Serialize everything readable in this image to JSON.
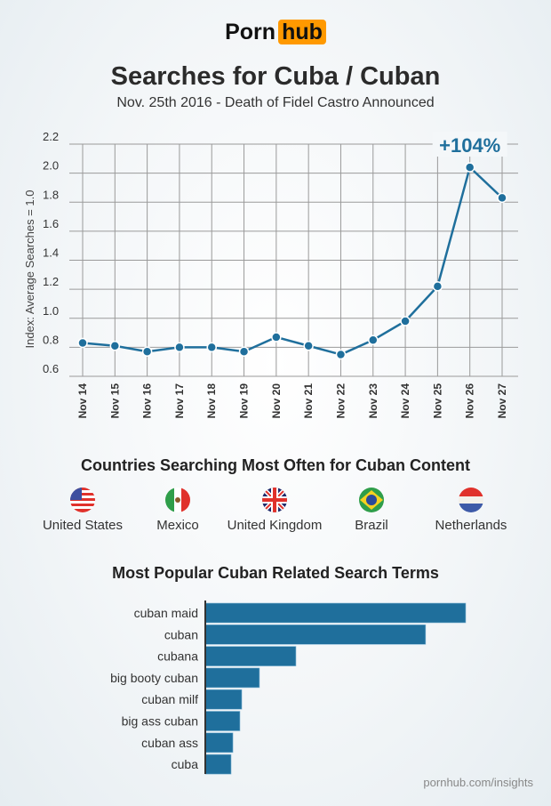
{
  "logo": {
    "part1": "Porn",
    "part2": "hub"
  },
  "title": "Searches for Cuba / Cuban",
  "subtitle": "Nov. 25th 2016 - Death of Fidel Castro Announced",
  "chart_data": [
    {
      "type": "line",
      "ylabel": "Index: Average Searches = 1.0",
      "xlabel": "",
      "categories": [
        "Nov 14",
        "Nov 15",
        "Nov 16",
        "Nov 17",
        "Nov 18",
        "Nov 19",
        "Nov 20",
        "Nov 21",
        "Nov 22",
        "Nov 23",
        "Nov 24",
        "Nov 25",
        "Nov 26",
        "Nov 27"
      ],
      "values": [
        0.83,
        0.81,
        0.77,
        0.8,
        0.8,
        0.77,
        0.87,
        0.81,
        0.75,
        0.85,
        0.98,
        1.22,
        2.04,
        1.83
      ],
      "ylim": [
        0.6,
        2.2
      ],
      "yticks": [
        "0.6",
        "0.8",
        "1.0",
        "1.2",
        "1.4",
        "1.6",
        "1.8",
        "2.0",
        "2.2"
      ],
      "grid": true,
      "annotation": {
        "text": "+104%",
        "category": "Nov 26"
      },
      "color": "#1f6f9c"
    },
    {
      "type": "bar",
      "orientation": "horizontal",
      "title": "Most Popular Cuban Related Search Terms",
      "categories": [
        "cuban maid",
        "cuban",
        "cubana",
        "big booty cuban",
        "cuban milf",
        "big ass cuban",
        "cuban ass",
        "cuba"
      ],
      "values": [
        100,
        84.6,
        34.8,
        20.8,
        14.0,
        13.3,
        10.6,
        9.9
      ],
      "color": "#1f6f9c"
    }
  ],
  "countries": {
    "title": "Countries Searching Most Often for Cuban Content",
    "items": [
      {
        "name": "United States",
        "flag": "us-flag"
      },
      {
        "name": "Mexico",
        "flag": "mexico-flag"
      },
      {
        "name": "United Kingdom",
        "flag": "uk-flag"
      },
      {
        "name": "Brazil",
        "flag": "brazil-flag"
      },
      {
        "name": "Netherlands",
        "flag": "netherlands-flag"
      }
    ]
  },
  "footer": "pornhub.com/insights"
}
